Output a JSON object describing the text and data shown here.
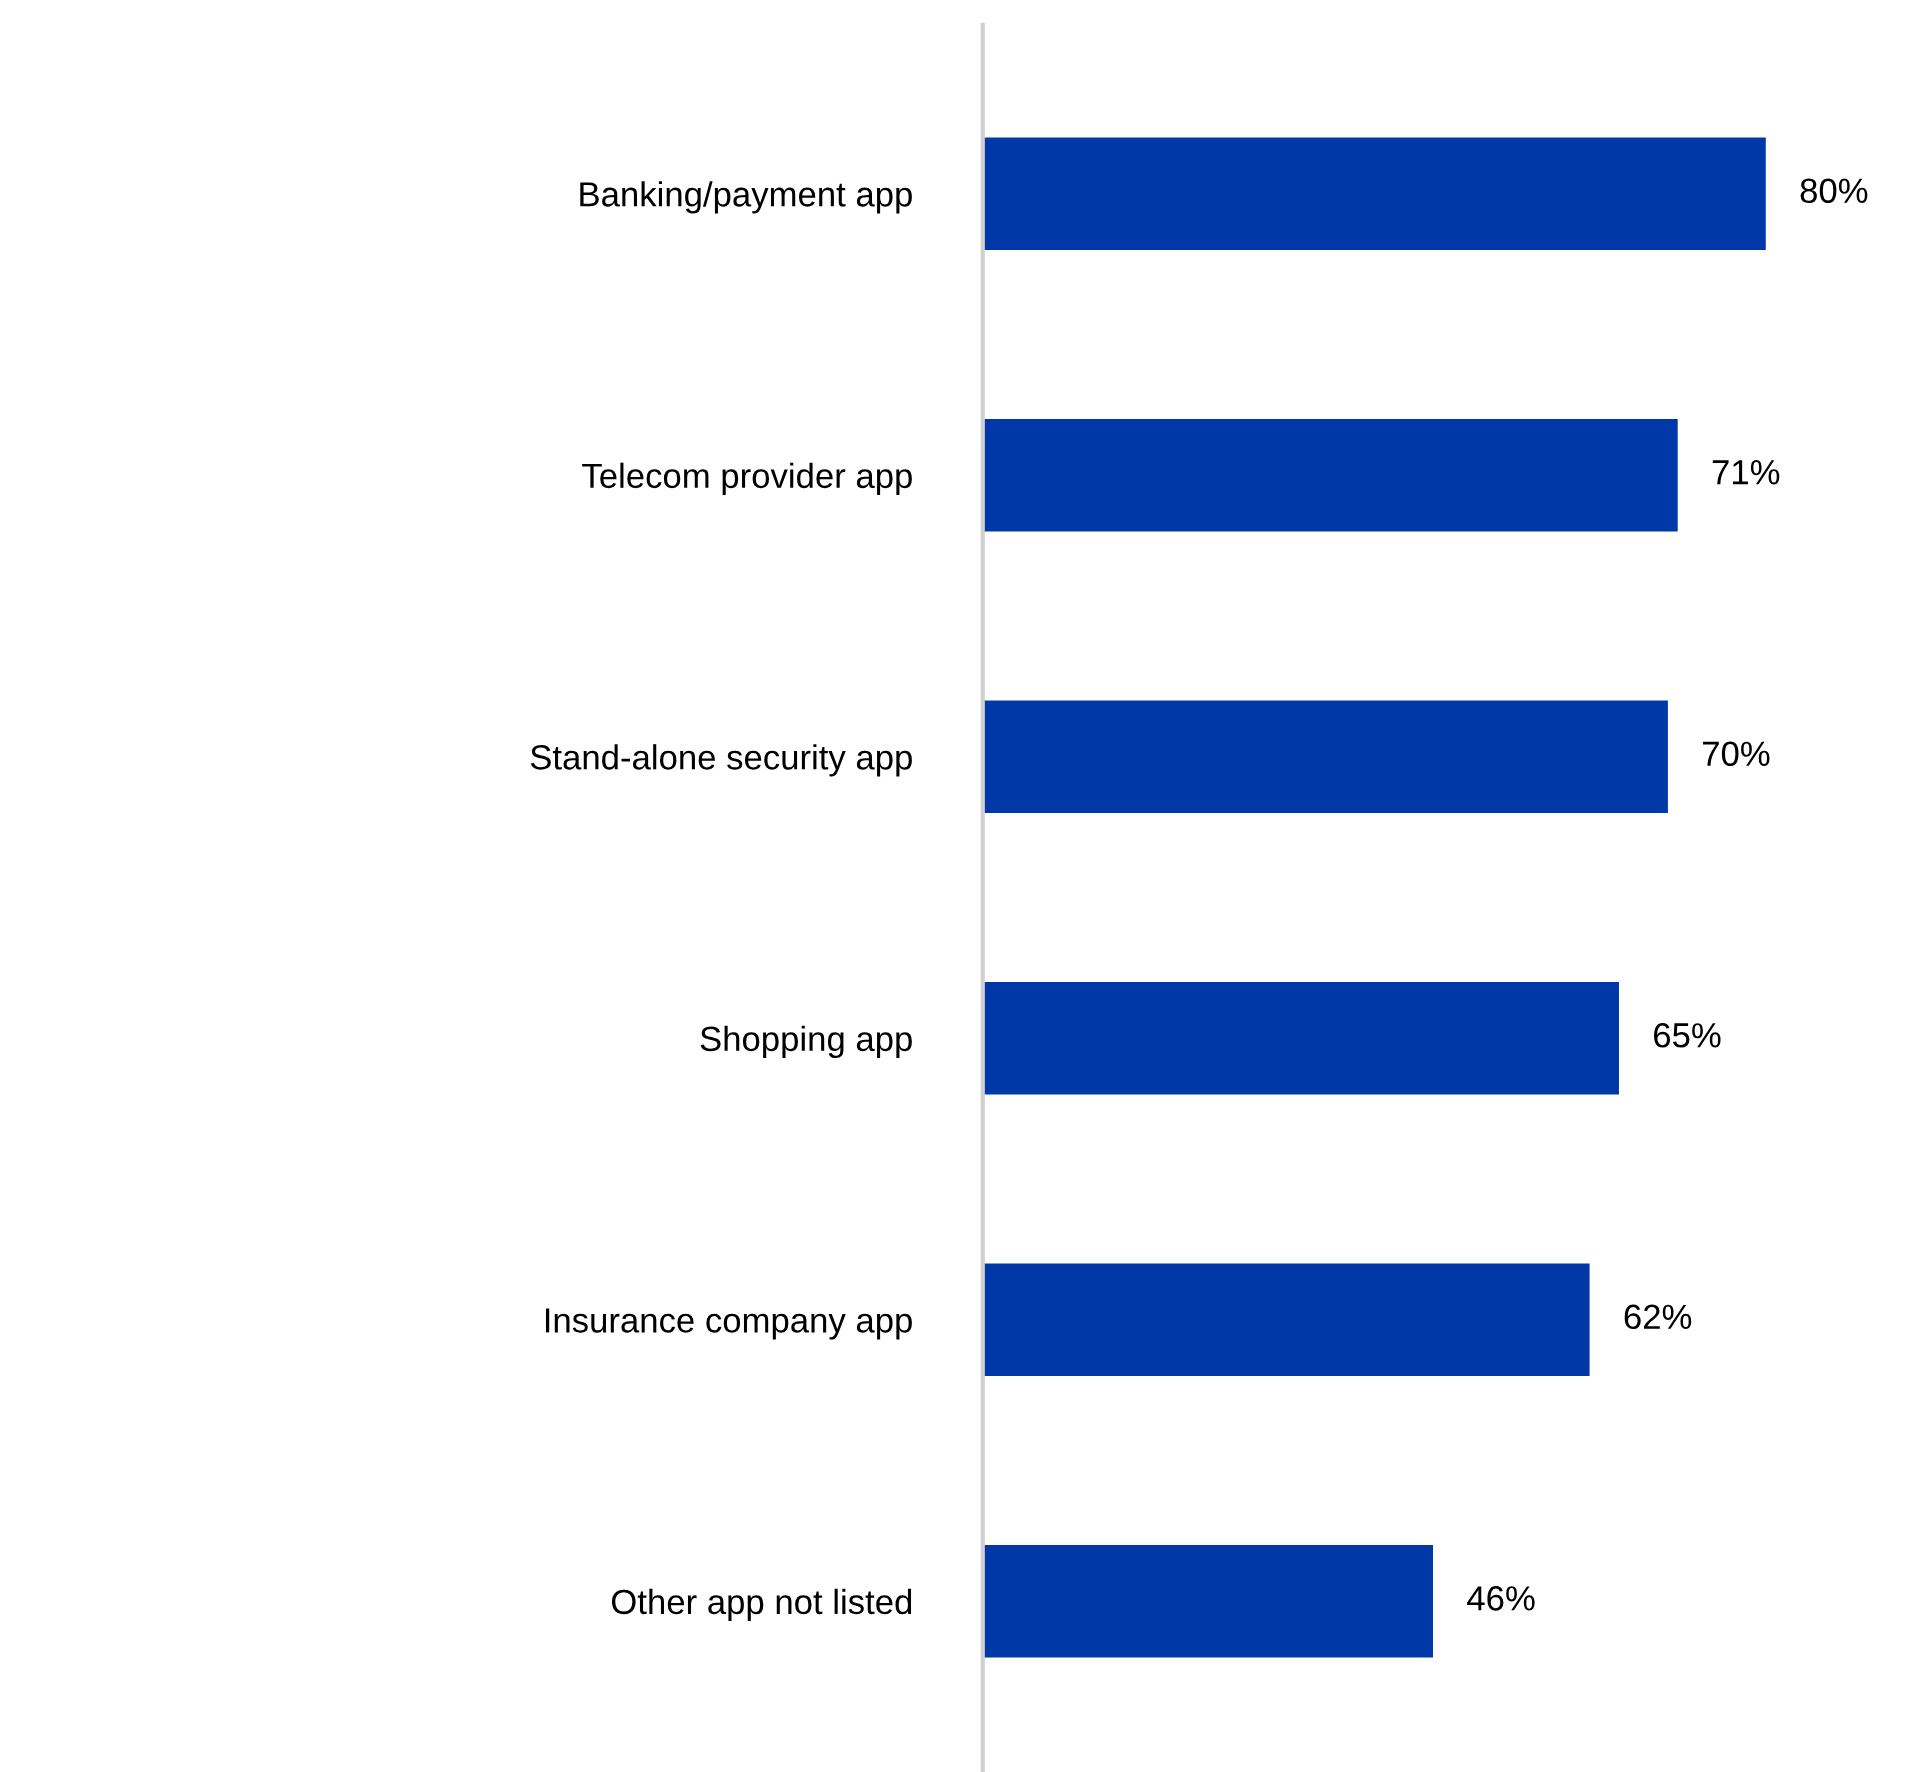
{
  "chart_data": {
    "type": "bar",
    "orientation": "horizontal",
    "categories": [
      "Banking/payment app",
      "Telecom provider app",
      "Stand-alone security app",
      "Shopping app",
      "Insurance company app",
      "Other app not listed"
    ],
    "values": [
      80,
      71,
      70,
      65,
      62,
      46
    ],
    "value_labels": [
      "80%",
      "71%",
      "70%",
      "65%",
      "62%",
      "46%"
    ],
    "color": "#0038a8"
  }
}
